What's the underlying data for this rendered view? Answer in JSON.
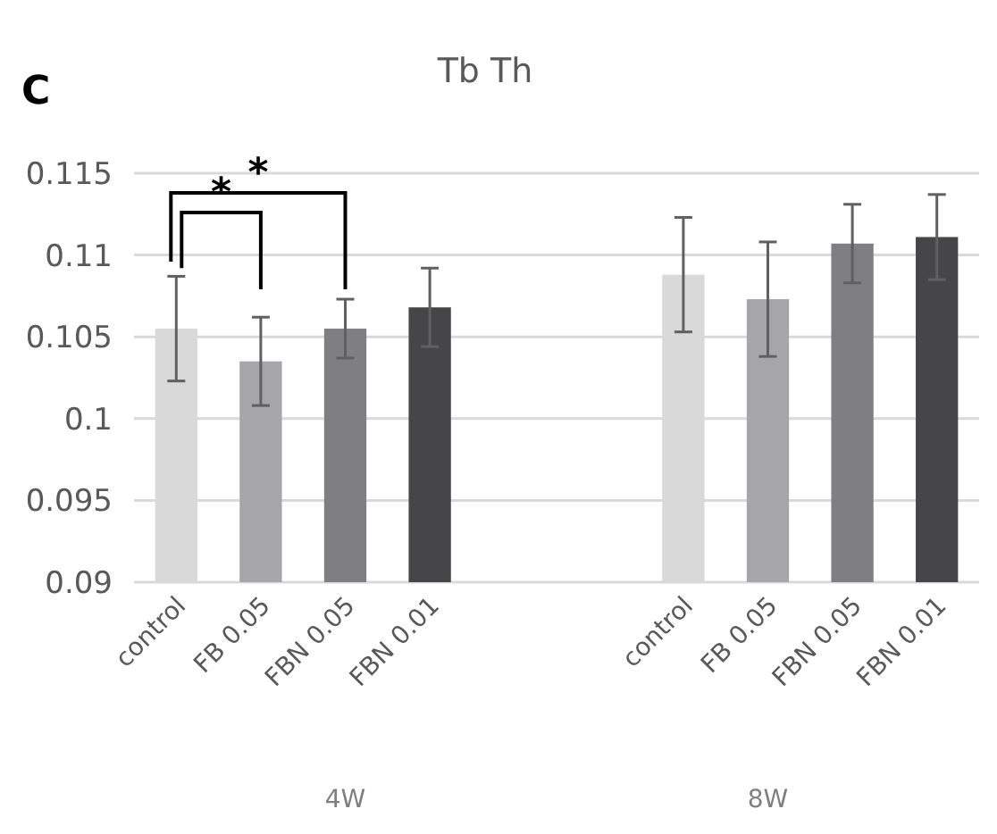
{
  "chart_data": {
    "type": "bar",
    "title": "Tb Th",
    "categories": [
      "control",
      "FB 0.05",
      "FBN 0.05",
      "FBN 0.01",
      null,
      null,
      "control",
      "FB 0.05",
      "FBN 0.05",
      "FBN 0.01"
    ],
    "values": [
      0.1055,
      0.1035,
      0.1055,
      0.1068,
      null,
      null,
      0.1088,
      0.1073,
      0.1107,
      0.1111
    ],
    "errors": [
      0.0032,
      0.0027,
      0.0018,
      0.0024,
      null,
      null,
      0.0035,
      0.0035,
      0.0024,
      0.0026
    ],
    "colors": [
      "#d9d9d9",
      "#a6a6a8",
      "#7f7f82",
      "#464648",
      null,
      null,
      "#d9d9d9",
      "#a6a6a8",
      "#7f7f82",
      "#464648"
    ],
    "ylim": [
      0.09,
      0.115
    ],
    "yticks": [
      0.09,
      0.095,
      0.1,
      0.105,
      0.11,
      0.115
    ],
    "grid": "y",
    "annotations": [
      "C",
      "*",
      "*",
      "4W",
      "8W"
    ]
  }
}
